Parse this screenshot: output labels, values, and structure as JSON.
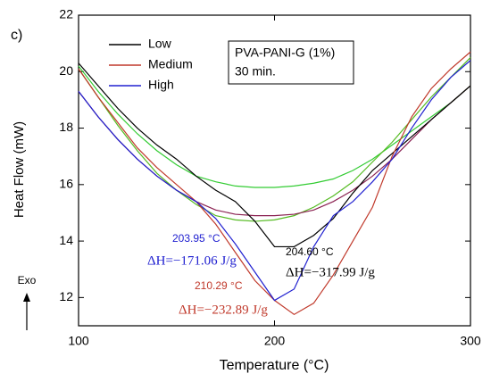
{
  "chart_data": {
    "type": "line",
    "panel_label": "c)",
    "xlabel": "Temperature (°C)",
    "ylabel": "Heat Flow (mW)",
    "xlim": [
      100,
      300
    ],
    "xticks": [
      100,
      200,
      300
    ],
    "ylim": [
      11,
      22
    ],
    "yticks": [
      12,
      14,
      16,
      18,
      20,
      22
    ],
    "legend_position": "upper left",
    "x": [
      100,
      110,
      120,
      130,
      140,
      150,
      160,
      170,
      180,
      190,
      200,
      210,
      220,
      230,
      240,
      250,
      260,
      270,
      280,
      290,
      300
    ],
    "series": [
      {
        "name": "Low",
        "color": "#000000",
        "values": [
          20.3,
          19.5,
          18.7,
          18.0,
          17.4,
          16.9,
          16.3,
          15.8,
          15.4,
          14.7,
          13.8,
          13.8,
          14.2,
          14.8,
          15.7,
          16.5,
          17.1,
          17.7,
          18.3,
          18.9,
          19.5
        ]
      },
      {
        "name": "Medium",
        "color": "#c0392b",
        "values": [
          20.1,
          19.1,
          18.2,
          17.3,
          16.6,
          16.0,
          15.4,
          14.6,
          13.6,
          12.6,
          11.9,
          11.4,
          11.8,
          12.8,
          14.0,
          15.2,
          17.0,
          18.4,
          19.4,
          20.1,
          20.7
        ]
      },
      {
        "name": "High",
        "color": "#2020d0",
        "values": [
          19.3,
          18.4,
          17.6,
          16.9,
          16.3,
          15.8,
          15.4,
          14.8,
          13.9,
          12.9,
          11.9,
          12.3,
          13.8,
          14.9,
          15.4,
          16.1,
          16.9,
          18.0,
          19.0,
          19.8,
          20.4
        ]
      }
    ],
    "baselines": [
      {
        "color": "#33cc33",
        "values": [
          20.2,
          19.3,
          18.5,
          17.8,
          17.2,
          16.7,
          16.3,
          16.1,
          15.95,
          15.9,
          15.9,
          15.95,
          16.05,
          16.2,
          16.5,
          16.9,
          17.4,
          17.9,
          18.4,
          18.9,
          19.5
        ]
      },
      {
        "color": "#55bb22",
        "values": [
          20.1,
          19.1,
          18.1,
          17.2,
          16.4,
          15.8,
          15.3,
          14.9,
          14.75,
          14.7,
          14.75,
          14.9,
          15.2,
          15.6,
          16.1,
          16.8,
          17.5,
          18.3,
          19.1,
          19.8,
          20.5
        ]
      },
      {
        "color": "#8b2252",
        "values": [
          19.3,
          18.4,
          17.6,
          16.9,
          16.3,
          15.8,
          15.4,
          15.1,
          14.95,
          14.9,
          14.9,
          14.95,
          15.1,
          15.4,
          15.8,
          16.3,
          16.9,
          17.6,
          18.3,
          18.9,
          19.5
        ]
      }
    ],
    "legend_box": [
      "PVA-PANI-G (1%)",
      "30 min."
    ],
    "annotations": [
      {
        "text": "203.95 °C",
        "color": "#2020d0"
      },
      {
        "text": "ΔH=−171.06 J/g",
        "color": "#2020d0"
      },
      {
        "text": "204.60 °C",
        "color": "#000000"
      },
      {
        "text": "ΔH=−317.99 J/g",
        "color": "#000000"
      },
      {
        "text": "210.29 °C",
        "color": "#c0392b"
      },
      {
        "text": "ΔH=−232.89 J/g",
        "color": "#c0392b"
      }
    ],
    "exo_label": "Exo"
  }
}
